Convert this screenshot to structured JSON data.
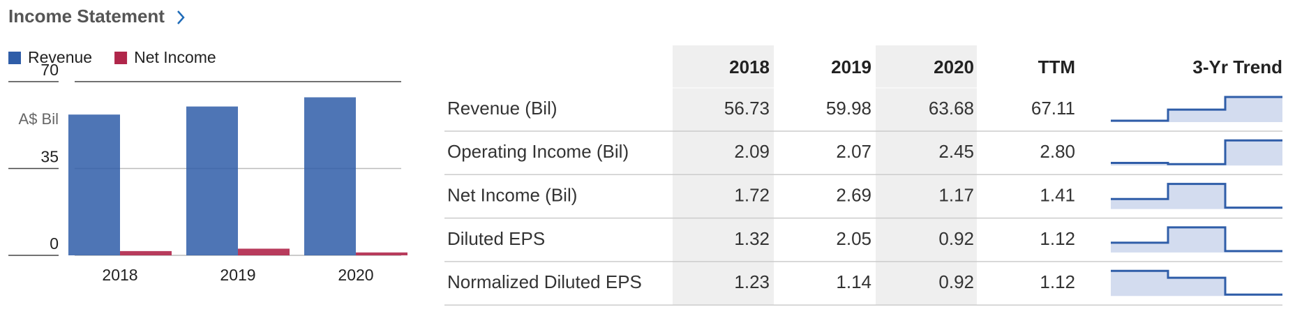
{
  "header": {
    "title": "Income Statement"
  },
  "chart_data": {
    "type": "bar",
    "categories": [
      "2018",
      "2019",
      "2020"
    ],
    "series": [
      {
        "name": "Revenue",
        "color": "#2f5da8",
        "values": [
          56.73,
          59.98,
          63.68
        ]
      },
      {
        "name": "Net Income",
        "color": "#b0264a",
        "values": [
          1.72,
          2.69,
          1.17
        ]
      }
    ],
    "y_label": "A$ Bil",
    "ylim": [
      0,
      70
    ],
    "yticks": [
      0,
      35,
      70
    ],
    "grid": true
  },
  "table": {
    "columns": [
      "2018",
      "2019",
      "2020",
      "TTM",
      "3-Yr Trend"
    ],
    "rows": [
      {
        "label": "Revenue (Bil)",
        "values": [
          "56.73",
          "59.98",
          "63.68",
          "67.11"
        ]
      },
      {
        "label": "Operating Income (Bil)",
        "values": [
          "2.09",
          "2.07",
          "2.45",
          "2.80"
        ]
      },
      {
        "label": "Net Income (Bil)",
        "values": [
          "1.72",
          "2.69",
          "1.17",
          "1.41"
        ]
      },
      {
        "label": "Diluted EPS",
        "values": [
          "1.32",
          "2.05",
          "0.92",
          "1.12"
        ]
      },
      {
        "label": "Normalized Diluted EPS",
        "values": [
          "1.23",
          "1.14",
          "0.92",
          "1.12"
        ]
      }
    ]
  }
}
